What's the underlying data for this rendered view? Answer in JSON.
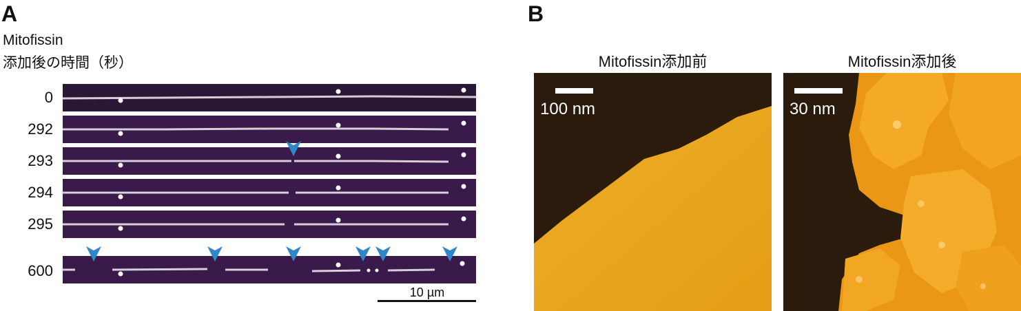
{
  "panel_a": {
    "letter": "A",
    "label_line1": "Mitofissin",
    "label_line2": "添加後の時間（秒）",
    "rows": [
      {
        "time": "0"
      },
      {
        "time": "292"
      },
      {
        "time": "293"
      },
      {
        "time": "294"
      },
      {
        "time": "295"
      },
      {
        "time": "600"
      }
    ],
    "scalebar_label": "10 µm"
  },
  "panel_b": {
    "letter": "B",
    "left_title": "Mitofissin添加前",
    "right_title": "Mitofissin添加後",
    "left_scale_label": "100 nm",
    "right_scale_label": "30 nm"
  },
  "colors": {
    "kymo_background": "#2a1736",
    "filament": "#e8e2ea",
    "arrowhead": "#2f87c9",
    "afm_dark": "#2a1b0c",
    "afm_bright": "#f3a51c"
  }
}
